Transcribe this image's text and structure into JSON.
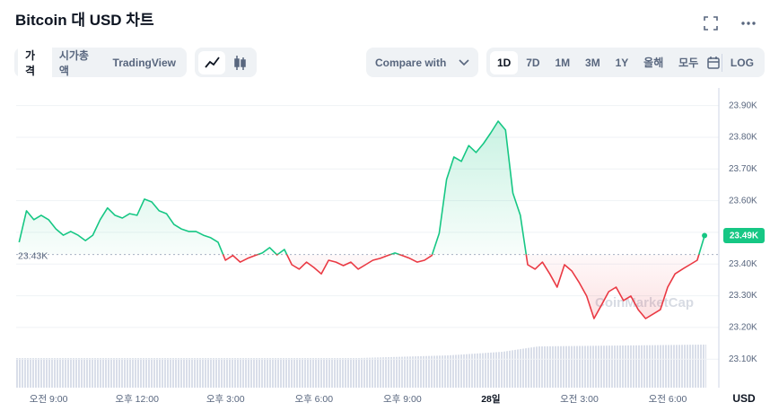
{
  "ui": {
    "title": "Bitcoin 대 USD 차트",
    "tabs": [
      "가격",
      "시가총액",
      "TradingView"
    ],
    "compare": "Compare with",
    "ranges": [
      "1D",
      "7D",
      "1M",
      "3M",
      "1Y",
      "올해",
      "모두"
    ],
    "log": "LOG",
    "currency": "USD",
    "watermark": "CoinMarketCap"
  },
  "chart_data": {
    "type": "line",
    "x": [
      8,
      8.25,
      8.5,
      8.75,
      9,
      9.25,
      9.5,
      9.75,
      10,
      10.25,
      10.5,
      10.75,
      11,
      11.25,
      11.5,
      11.75,
      12,
      12.25,
      12.5,
      12.75,
      13,
      13.25,
      13.5,
      13.75,
      14,
      14.25,
      14.5,
      14.75,
      15,
      15.25,
      15.5,
      15.75,
      16,
      16.25,
      16.5,
      16.75,
      17,
      17.25,
      17.5,
      17.75,
      18,
      18.25,
      18.5,
      18.75,
      19,
      19.25,
      19.5,
      19.75,
      20,
      20.25,
      20.5,
      20.75,
      21,
      21.25,
      21.5,
      21.75,
      22,
      22.25,
      22.5,
      22.75,
      23,
      23.25,
      23.5,
      23.75,
      24,
      24.25,
      24.5,
      24.75,
      25,
      25.25,
      25.5,
      25.75,
      26,
      26.25,
      26.5,
      26.75,
      27,
      27.25,
      27.5,
      27.75,
      28,
      28.25,
      28.5,
      28.75,
      29,
      29.25,
      29.5,
      29.75,
      30,
      30.25,
      30.5,
      30.75,
      31,
      31.25
    ],
    "series": [
      {
        "values": [
          23469,
          23568,
          23540,
          23554,
          23540,
          23511,
          23491,
          23503,
          23491,
          23474,
          23491,
          23540,
          23577,
          23554,
          23545,
          23559,
          23554,
          23605,
          23596,
          23568,
          23559,
          23525,
          23511,
          23503,
          23503,
          23491,
          23483,
          23469,
          23412,
          23427,
          23406,
          23418,
          23427,
          23435,
          23452,
          23429,
          23446,
          23398,
          23384,
          23406,
          23389,
          23369,
          23412,
          23406,
          23395,
          23406,
          23384,
          23398,
          23412,
          23418,
          23427,
          23435,
          23427,
          23418,
          23406,
          23412,
          23427,
          23497,
          23667,
          23738,
          23724,
          23774,
          23752,
          23780,
          23814,
          23851,
          23823,
          23624,
          23554,
          23398,
          23384,
          23406,
          23369,
          23327,
          23398,
          23378,
          23341,
          23299,
          23228,
          23270,
          23313,
          23327,
          23285,
          23299,
          23256,
          23228,
          23242,
          23256,
          23327,
          23369,
          23384,
          23398,
          23412,
          23490
        ]
      }
    ],
    "up_color": "#16c784",
    "down_color": "#ea3943",
    "xlim": [
      7.9,
      31.4
    ],
    "ylim": [
      23010,
      23950
    ],
    "xticks": [
      {
        "value": 9,
        "label": "오전 9:00"
      },
      {
        "value": 12,
        "label": "오후 12:00"
      },
      {
        "value": 15,
        "label": "오후 3:00"
      },
      {
        "value": 18,
        "label": "오후 6:00"
      },
      {
        "value": 21,
        "label": "오후 9:00"
      },
      {
        "value": 24,
        "label": "28일"
      },
      {
        "value": 27,
        "label": "오전 3:00"
      },
      {
        "value": 30,
        "label": "오전 6:00"
      }
    ],
    "yticks": [
      {
        "value": 23100,
        "label": "23.10K"
      },
      {
        "value": 23200,
        "label": "23.20K"
      },
      {
        "value": 23300,
        "label": "23.30K"
      },
      {
        "value": 23400,
        "label": "23.40K"
      },
      {
        "value": 23500,
        "label": "23.50K"
      },
      {
        "value": 23600,
        "label": "23.60K"
      },
      {
        "value": 23700,
        "label": "23.70K"
      },
      {
        "value": 23800,
        "label": "23.80K"
      },
      {
        "value": 23900,
        "label": "23.90K"
      }
    ],
    "baseline": {
      "value": 23430,
      "label": "23.43K"
    },
    "last_price": {
      "value": 23490,
      "label": "23.49K"
    },
    "grid": true
  }
}
